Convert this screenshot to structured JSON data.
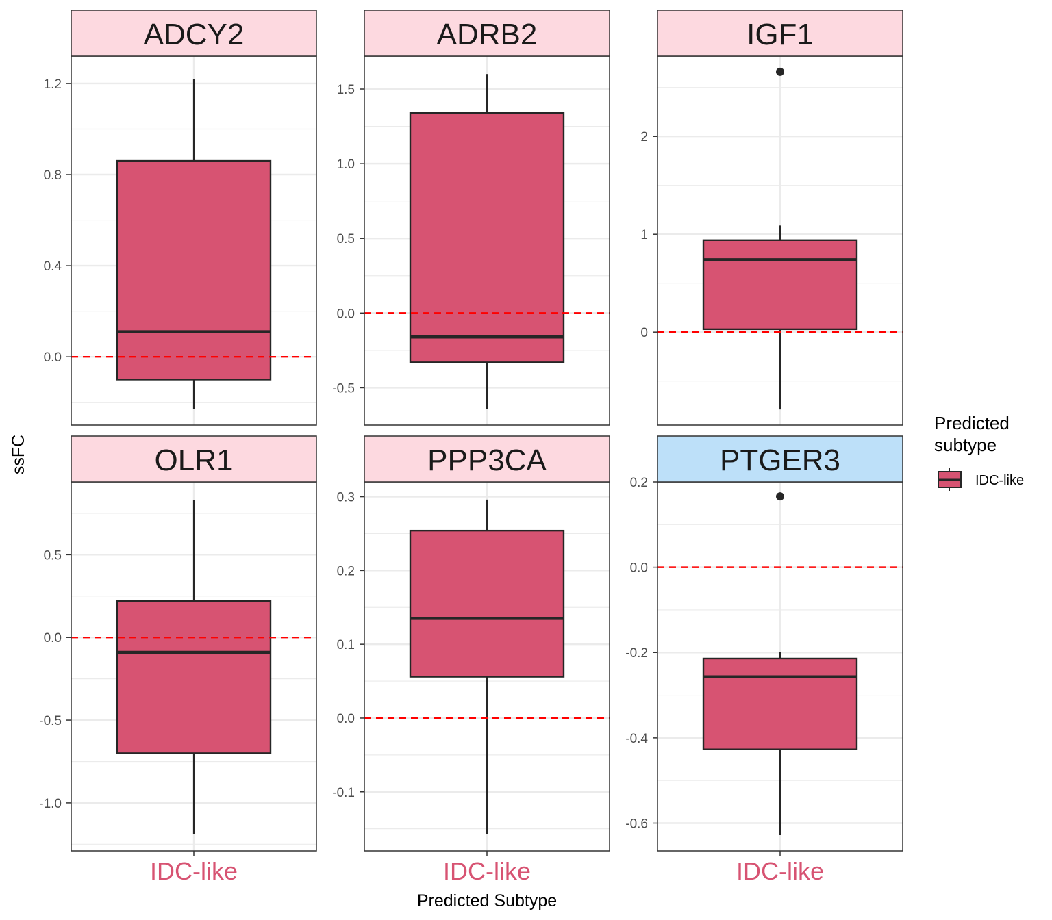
{
  "chart_data": {
    "type": "box",
    "xlabel": "Predicted Subtype",
    "ylabel": "ssFC",
    "reference_line": {
      "y": 0,
      "style": "dashed",
      "color": "#ff0000"
    },
    "legend": {
      "title_lines": [
        "Predicted",
        "subtype"
      ],
      "items": [
        "IDC-like"
      ],
      "placement": "right"
    },
    "colors": {
      "box_fill": "#d75372",
      "box_stroke": "#262626",
      "strip_pink": "#fdd9e0",
      "strip_blue": "#bde0f9",
      "category_label": "#d75372",
      "grid": "#ebebeb"
    },
    "panels": [
      {
        "title": "ADCY2",
        "strip": "pink",
        "category": "IDC-like",
        "ylim": [
          -0.3,
          1.32
        ],
        "ticks": [
          0.0,
          0.4,
          0.8,
          1.2
        ],
        "tick_labels": [
          "0.0",
          "0.4",
          "0.8",
          "1.2"
        ],
        "box": {
          "whisker_low": -0.23,
          "q1": -0.1,
          "median": 0.11,
          "q3": 0.86,
          "whisker_high": 1.22
        },
        "outliers": []
      },
      {
        "title": "ADRB2",
        "strip": "pink",
        "category": "IDC-like",
        "ylim": [
          -0.75,
          1.72
        ],
        "ticks": [
          -0.5,
          0.0,
          0.5,
          1.0,
          1.5
        ],
        "tick_labels": [
          "-0.5",
          "0.0",
          "0.5",
          "1.0",
          "1.5"
        ],
        "box": {
          "whisker_low": -0.64,
          "q1": -0.33,
          "median": -0.16,
          "q3": 1.34,
          "whisker_high": 1.6
        },
        "outliers": []
      },
      {
        "title": "IGF1",
        "strip": "pink",
        "category": "IDC-like",
        "ylim": [
          -0.95,
          2.82
        ],
        "ticks": [
          0,
          1,
          2
        ],
        "tick_labels": [
          "0",
          "1",
          "2"
        ],
        "box": {
          "whisker_low": -0.79,
          "q1": 0.03,
          "median": 0.74,
          "q3": 0.94,
          "whisker_high": 1.09
        },
        "outliers": [
          2.66
        ]
      },
      {
        "title": "OLR1",
        "strip": "pink",
        "category": "IDC-like",
        "ylim": [
          -1.29,
          0.94
        ],
        "ticks": [
          -1.0,
          -0.5,
          0.0,
          0.5
        ],
        "tick_labels": [
          "-1.0",
          "-0.5",
          "0.0",
          "0.5"
        ],
        "box": {
          "whisker_low": -1.19,
          "q1": -0.7,
          "median": -0.09,
          "q3": 0.22,
          "whisker_high": 0.83
        },
        "outliers": []
      },
      {
        "title": "PPP3CA",
        "strip": "pink",
        "category": "IDC-like",
        "ylim": [
          -0.18,
          0.32
        ],
        "ticks": [
          -0.1,
          0.0,
          0.1,
          0.2,
          0.3
        ],
        "tick_labels": [
          "-0.1",
          "0.0",
          "0.1",
          "0.2",
          "0.3"
        ],
        "box": {
          "whisker_low": -0.157,
          "q1": 0.056,
          "median": 0.135,
          "q3": 0.254,
          "whisker_high": 0.296
        },
        "outliers": []
      },
      {
        "title": "PTGER3",
        "strip": "blue",
        "category": "IDC-like",
        "ylim": [
          -0.665,
          0.2
        ],
        "ticks": [
          -0.6,
          -0.4,
          -0.2,
          0.0,
          0.2
        ],
        "tick_labels": [
          "-0.6",
          "-0.4",
          "-0.2",
          "0.0",
          "0.2"
        ],
        "box": {
          "whisker_low": -0.628,
          "q1": -0.427,
          "median": -0.257,
          "q3": -0.214,
          "whisker_high": -0.199
        },
        "outliers": [
          0.166
        ]
      }
    ]
  }
}
